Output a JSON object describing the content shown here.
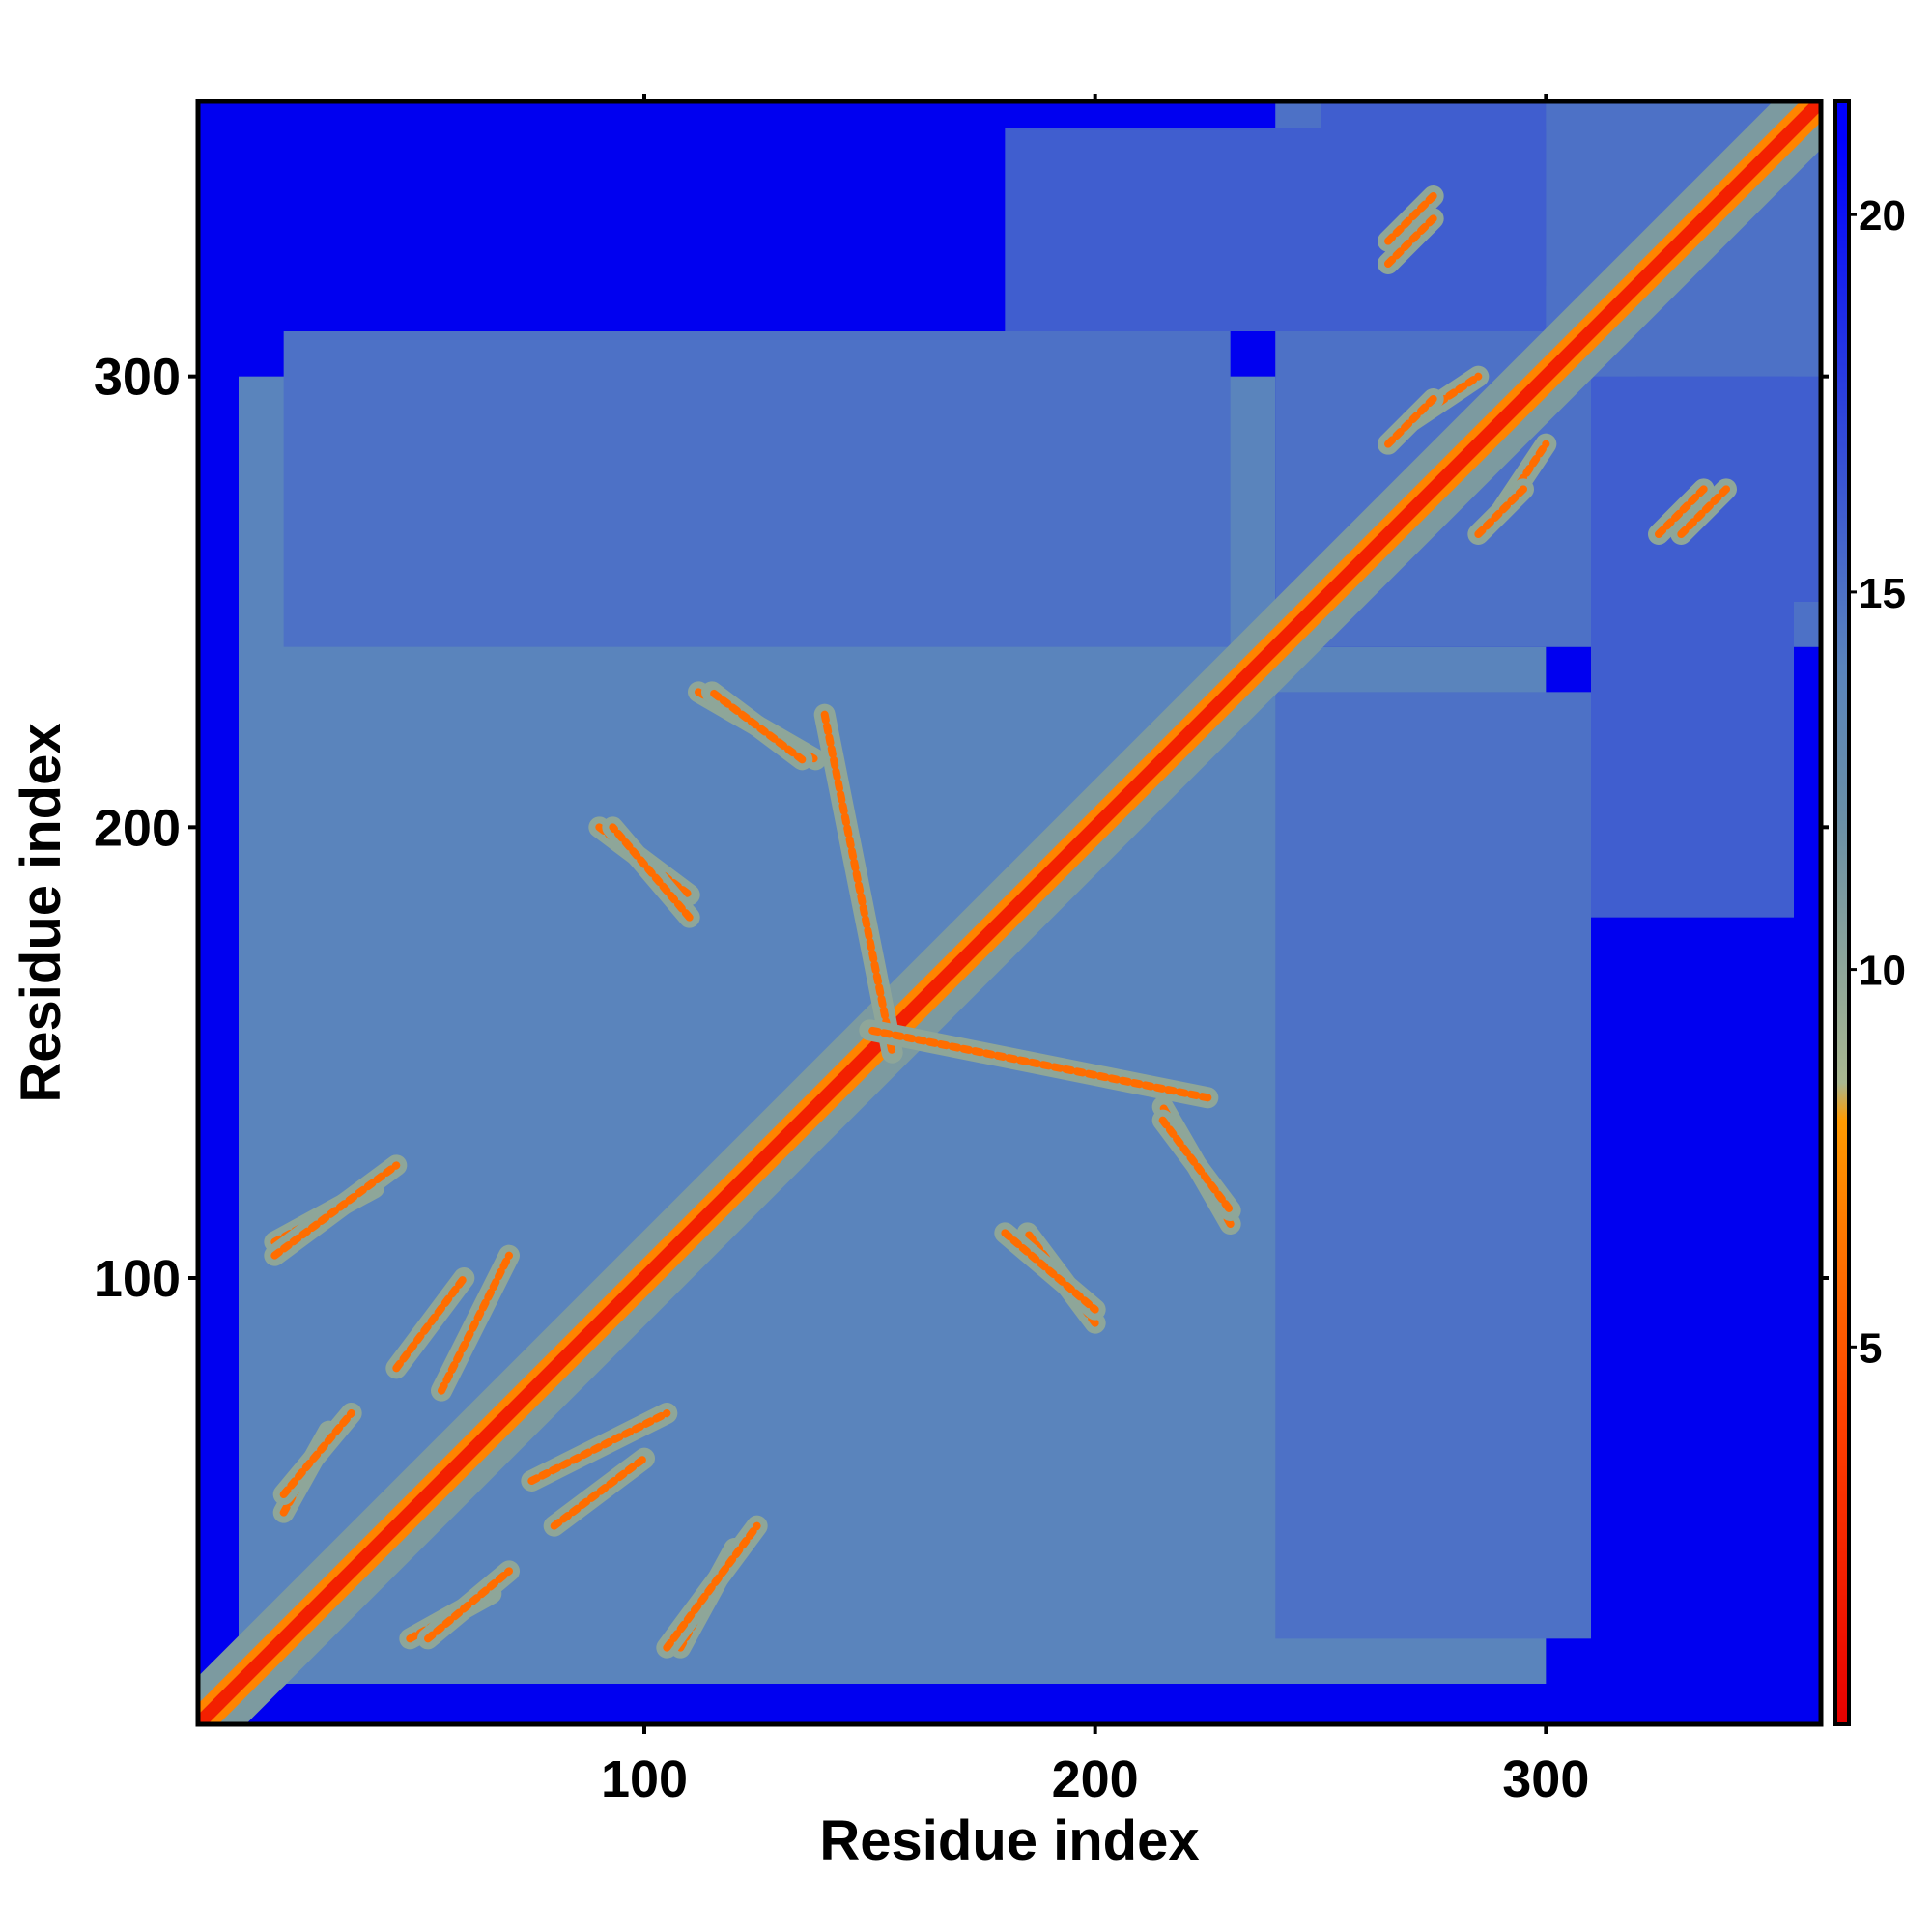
{
  "chart_data": {
    "type": "heatmap",
    "xlabel": "Residue index",
    "ylabel": "Residue index",
    "xlim": [
      1,
      361
    ],
    "ylim": [
      1,
      361
    ],
    "x_ticks": [
      100,
      200,
      300
    ],
    "y_ticks": [
      100,
      200,
      300
    ],
    "colorbar": {
      "range": [
        0,
        21.5
      ],
      "ticks": [
        5,
        10,
        15,
        20
      ],
      "stops": [
        {
          "value": 0,
          "color": "#e60000"
        },
        {
          "value": 4,
          "color": "#ff4000"
        },
        {
          "value": 8,
          "color": "#ff9a00"
        },
        {
          "value": 8.5,
          "color": "#a9b790"
        },
        {
          "value": 12,
          "color": "#6a8fa6"
        },
        {
          "value": 14,
          "color": "#5a84bc"
        },
        {
          "value": 21,
          "color": "#0000ff"
        }
      ]
    },
    "background_color": "#0000f0",
    "bands": [
      {
        "name": "main diagonal",
        "kind": "diagonal",
        "start": 1,
        "end": 361,
        "value": 2
      },
      {
        "name": "sheet 1",
        "kind": "antidiagonal",
        "start": [
          18,
          108
        ],
        "end": [
          40,
          120
        ],
        "value": 6
      },
      {
        "name": "sheet 2",
        "kind": "antidiagonal",
        "start": [
          45,
          80
        ],
        "end": [
          60,
          100
        ],
        "value": 6
      },
      {
        "name": "sheet 3",
        "kind": "antidiagonal",
        "start": [
          48,
          20
        ],
        "end": [
          66,
          30
        ],
        "value": 6
      },
      {
        "name": "sheet 4",
        "kind": "parallel",
        "start": [
          20,
          52
        ],
        "end": [
          35,
          70
        ],
        "value": 6
      },
      {
        "name": "sheet 5",
        "kind": "parallel",
        "start": [
          75,
          55
        ],
        "end": [
          105,
          70
        ],
        "value": 6
      },
      {
        "name": "sheet 6",
        "kind": "antidiagonal",
        "start": [
          105,
          18
        ],
        "end": [
          125,
          45
        ],
        "value": 6
      },
      {
        "name": "sheet 7",
        "kind": "antidiagonal",
        "start": [
          90,
          200
        ],
        "end": [
          110,
          185
        ],
        "value": 6
      },
      {
        "name": "sheet 8",
        "kind": "antidiagonal",
        "start": [
          112,
          230
        ],
        "end": [
          138,
          215
        ],
        "value": 6
      },
      {
        "name": "sheet 9",
        "kind": "antidiagonal",
        "start": [
          140,
          225
        ],
        "end": [
          155,
          150
        ],
        "value": 6
      },
      {
        "name": "sheet 10",
        "kind": "antidiagonal",
        "start": [
          180,
          110
        ],
        "end": [
          200,
          93
        ],
        "value": 6
      },
      {
        "name": "sheet 11",
        "kind": "antidiagonal",
        "start": [
          215,
          135
        ],
        "end": [
          230,
          115
        ],
        "value": 6
      },
      {
        "name": "sheet 12",
        "kind": "antidiagonal",
        "start": [
          265,
          330
        ],
        "end": [
          275,
          340
        ],
        "value": 6
      },
      {
        "name": "sheet 13",
        "kind": "antidiagonal",
        "start": [
          325,
          265
        ],
        "end": [
          335,
          275
        ],
        "value": 6
      },
      {
        "name": "sheet 14",
        "kind": "parallel",
        "start": [
          270,
          290
        ],
        "end": [
          285,
          300
        ],
        "value": 6
      },
      {
        "name": "sheet 15",
        "kind": "parallel",
        "start": [
          285,
          265
        ],
        "end": [
          295,
          275
        ],
        "value": 6
      }
    ],
    "domains": [
      {
        "name": "core block",
        "x": [
          10,
          300
        ],
        "y": [
          10,
          240
        ],
        "value": 14
      },
      {
        "name": "upper block",
        "x": [
          20,
          230
        ],
        "y": [
          240,
          310
        ],
        "value": 15
      },
      {
        "name": "c-term block",
        "x": [
          240,
          361
        ],
        "y": [
          240,
          361
        ],
        "value": 15
      },
      {
        "name": "c-term off-diagonal",
        "x": [
          310,
          355
        ],
        "y": [
          180,
          300
        ],
        "value": 16
      },
      {
        "name": "c-term top",
        "x": [
          250,
          300
        ],
        "y": [
          320,
          361
        ],
        "value": 16
      }
    ]
  }
}
